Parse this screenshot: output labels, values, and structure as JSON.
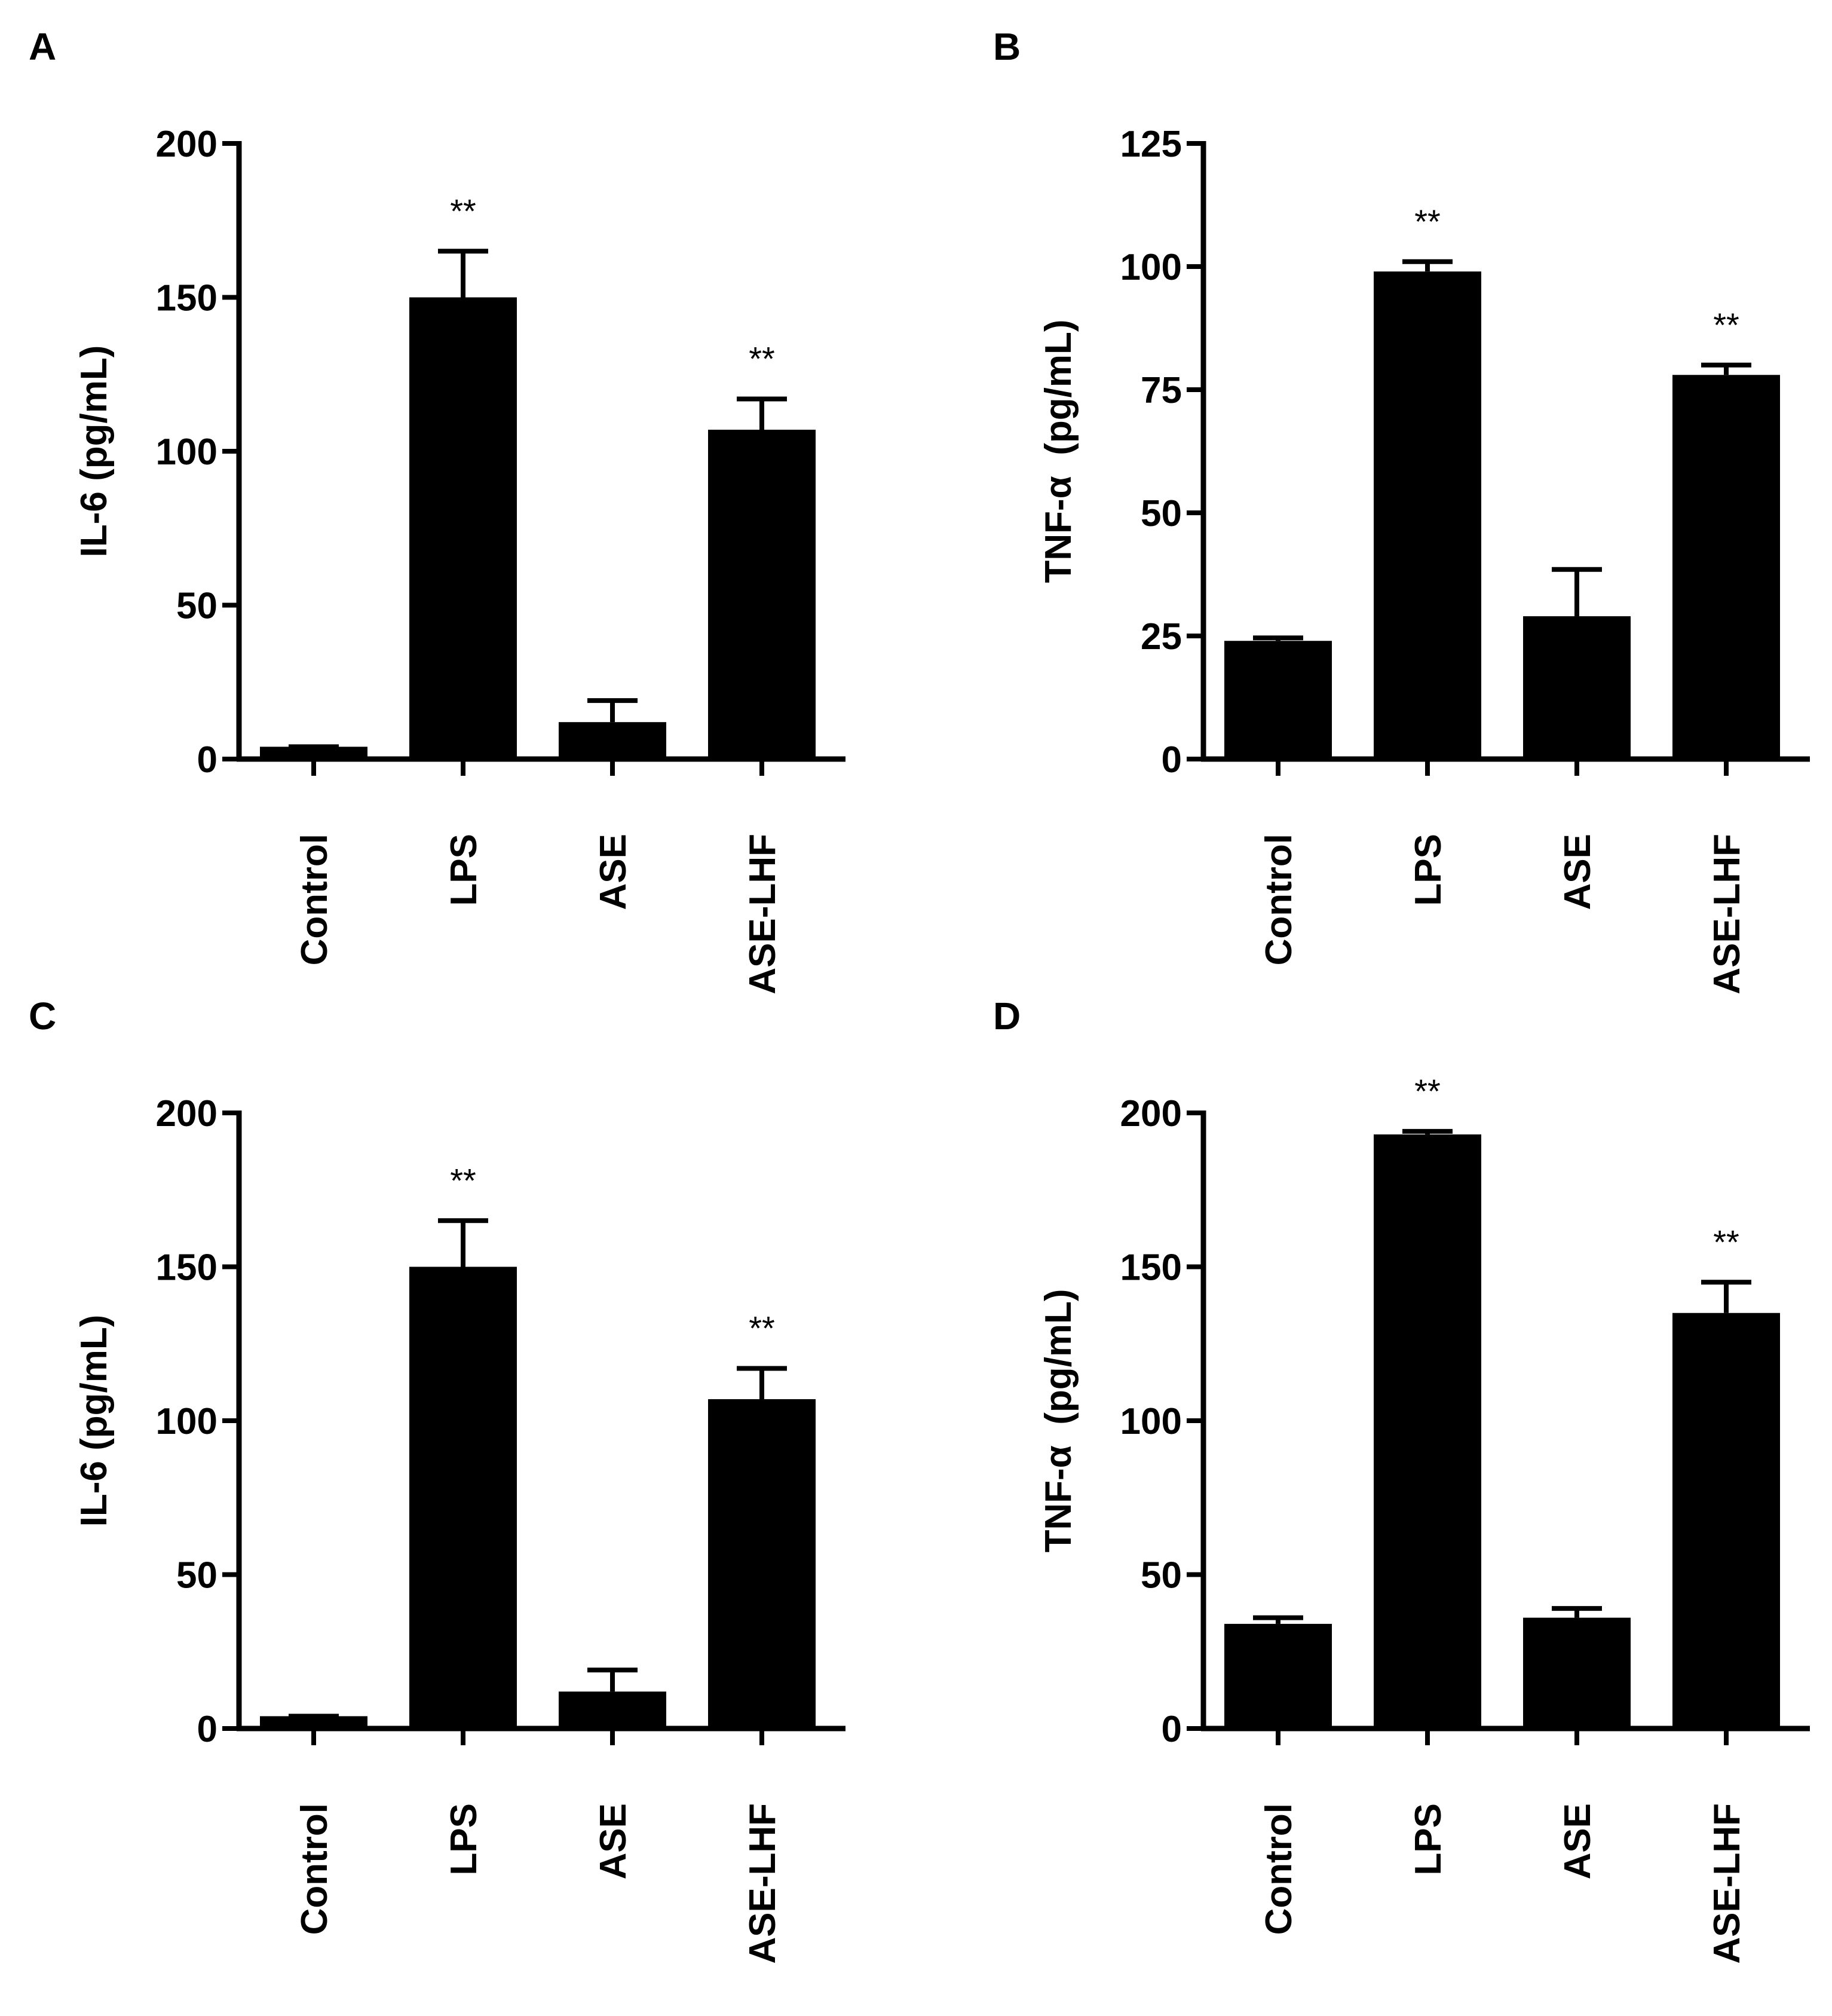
{
  "chart_data": [
    {
      "panel": "A",
      "type": "bar",
      "title": "",
      "xlabel": "",
      "ylabel": "IL-6 (pg/mL)",
      "ylim": [
        0,
        200
      ],
      "yticks": [
        0,
        50,
        100,
        150,
        200
      ],
      "categories": [
        "Control",
        "LPS",
        "ASE",
        "ASE-LHF"
      ],
      "values": [
        4,
        150,
        12,
        107
      ],
      "errors": [
        0,
        15,
        7,
        10
      ],
      "annotations": [
        "",
        "**",
        "",
        "**"
      ]
    },
    {
      "panel": "B",
      "type": "bar",
      "title": "",
      "xlabel": "",
      "ylabel": "TNF-α  (pg/mL)",
      "ylim": [
        0,
        125
      ],
      "yticks": [
        0,
        25,
        50,
        75,
        100,
        125
      ],
      "categories": [
        "Control",
        "LPS",
        "ASE",
        "ASE-LHF"
      ],
      "values": [
        24,
        99,
        29,
        78
      ],
      "errors": [
        0.6,
        2,
        9.5,
        2
      ],
      "annotations": [
        "",
        "**",
        "",
        "**"
      ]
    },
    {
      "panel": "C",
      "type": "bar",
      "title": "",
      "xlabel": "",
      "ylabel": "IL-6 (pg/mL)",
      "ylim": [
        0,
        200
      ],
      "yticks": [
        0,
        50,
        100,
        150,
        200
      ],
      "categories": [
        "Control",
        "LPS",
        "ASE",
        "ASE-LHF"
      ],
      "values": [
        4,
        150,
        12,
        107
      ],
      "errors": [
        0,
        15,
        7,
        10
      ],
      "annotations": [
        "",
        "**",
        "",
        "**"
      ]
    },
    {
      "panel": "D",
      "type": "bar",
      "title": "",
      "xlabel": "",
      "ylabel": "TNF-α  (pg/mL)",
      "ylim": [
        0,
        200
      ],
      "yticks": [
        0,
        50,
        100,
        150,
        200
      ],
      "categories": [
        "Control",
        "LPS",
        "ASE",
        "ASE-LHF"
      ],
      "values": [
        34,
        193,
        36,
        135
      ],
      "errors": [
        2,
        1,
        3,
        10
      ],
      "annotations": [
        "",
        "**",
        "",
        "**"
      ]
    }
  ],
  "colors": {
    "bar": "#000000",
    "axis": "#000000",
    "background": "#ffffff"
  }
}
